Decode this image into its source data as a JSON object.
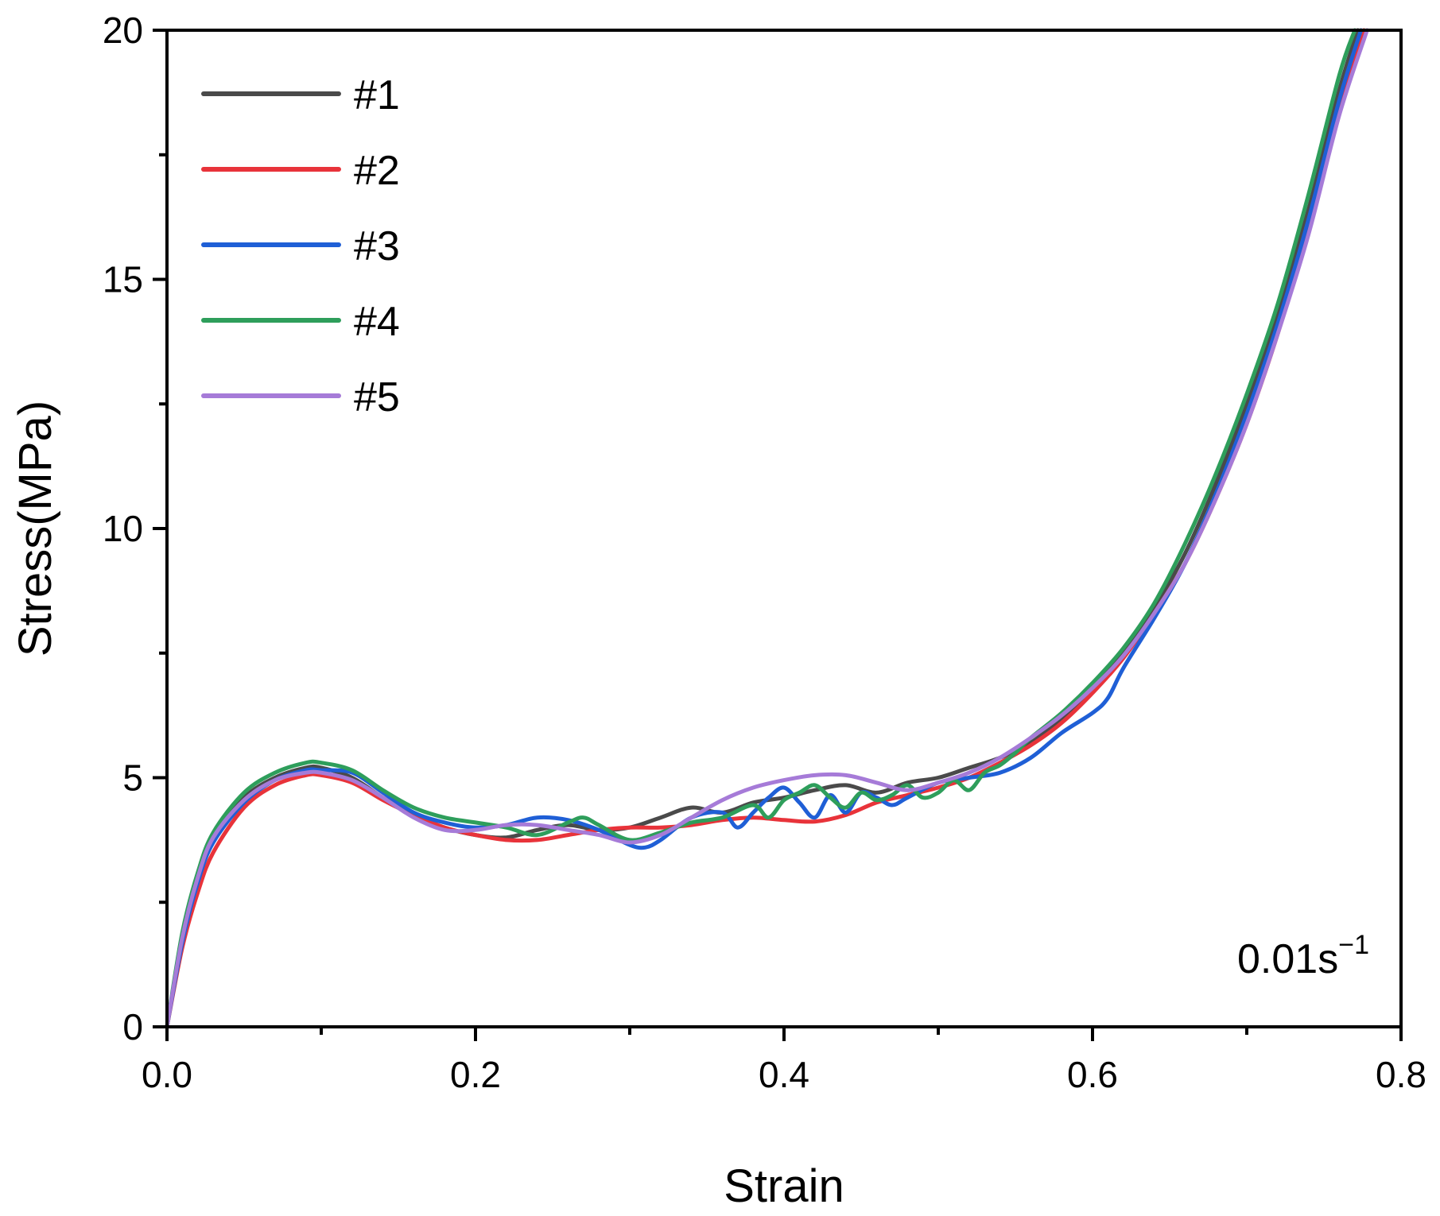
{
  "chart_data": {
    "type": "line",
    "title": "",
    "xlabel": "Strain",
    "ylabel": "Stress(MPa)",
    "xlim": [
      0.0,
      0.8
    ],
    "ylim": [
      0,
      20
    ],
    "xticks": [
      {
        "value": 0.0,
        "label": "0.0"
      },
      {
        "value": 0.2,
        "label": "0.2"
      },
      {
        "value": 0.4,
        "label": "0.4"
      },
      {
        "value": 0.6,
        "label": "0.6"
      },
      {
        "value": 0.8,
        "label": "0.8"
      }
    ],
    "yticks": [
      {
        "value": 0,
        "label": "0"
      },
      {
        "value": 5,
        "label": "5"
      },
      {
        "value": 10,
        "label": "10"
      },
      {
        "value": 15,
        "label": "15"
      },
      {
        "value": 20,
        "label": "20"
      }
    ],
    "grid": false,
    "legend_position": "top-left",
    "annotation": {
      "text": "0.01s",
      "superscript": "−1"
    },
    "series": [
      {
        "name": "#1",
        "color": "#4a4a4a",
        "x": [
          0.0,
          0.01,
          0.02,
          0.03,
          0.05,
          0.07,
          0.09,
          0.1,
          0.12,
          0.14,
          0.16,
          0.18,
          0.2,
          0.22,
          0.24,
          0.26,
          0.28,
          0.3,
          0.32,
          0.34,
          0.36,
          0.38,
          0.4,
          0.42,
          0.44,
          0.46,
          0.48,
          0.5,
          0.52,
          0.54,
          0.56,
          0.58,
          0.6,
          0.62,
          0.64,
          0.66,
          0.68,
          0.7,
          0.72,
          0.74,
          0.76,
          0.772
        ],
        "y": [
          0.0,
          1.8,
          3.0,
          3.8,
          4.6,
          5.0,
          5.2,
          5.2,
          5.0,
          4.6,
          4.25,
          4.0,
          3.85,
          3.8,
          3.95,
          4.05,
          3.95,
          4.0,
          4.2,
          4.4,
          4.3,
          4.5,
          4.6,
          4.75,
          4.85,
          4.7,
          4.9,
          5.0,
          5.2,
          5.4,
          5.7,
          6.2,
          6.8,
          7.5,
          8.4,
          9.5,
          10.9,
          12.5,
          14.3,
          16.4,
          18.8,
          20.0
        ]
      },
      {
        "name": "#2",
        "color": "#e8333a",
        "x": [
          0.0,
          0.01,
          0.02,
          0.03,
          0.05,
          0.07,
          0.09,
          0.1,
          0.12,
          0.14,
          0.16,
          0.18,
          0.2,
          0.22,
          0.24,
          0.26,
          0.28,
          0.3,
          0.32,
          0.34,
          0.36,
          0.38,
          0.4,
          0.42,
          0.44,
          0.46,
          0.48,
          0.5,
          0.52,
          0.54,
          0.56,
          0.58,
          0.6,
          0.62,
          0.64,
          0.66,
          0.68,
          0.7,
          0.72,
          0.74,
          0.76,
          0.776
        ],
        "y": [
          0.0,
          1.6,
          2.7,
          3.5,
          4.4,
          4.85,
          5.05,
          5.05,
          4.9,
          4.55,
          4.25,
          4.0,
          3.85,
          3.75,
          3.75,
          3.85,
          3.95,
          4.0,
          4.0,
          4.05,
          4.15,
          4.2,
          4.15,
          4.12,
          4.25,
          4.5,
          4.65,
          4.8,
          5.0,
          5.3,
          5.65,
          6.1,
          6.7,
          7.4,
          8.3,
          9.3,
          10.6,
          12.1,
          13.9,
          16.0,
          18.4,
          20.0
        ]
      },
      {
        "name": "#3",
        "color": "#1f5fd6",
        "x": [
          0.0,
          0.01,
          0.02,
          0.03,
          0.05,
          0.07,
          0.09,
          0.1,
          0.12,
          0.14,
          0.16,
          0.18,
          0.2,
          0.22,
          0.24,
          0.26,
          0.28,
          0.3,
          0.31,
          0.32,
          0.34,
          0.36,
          0.37,
          0.38,
          0.39,
          0.4,
          0.41,
          0.42,
          0.43,
          0.44,
          0.45,
          0.46,
          0.47,
          0.48,
          0.5,
          0.52,
          0.54,
          0.56,
          0.58,
          0.6,
          0.61,
          0.62,
          0.64,
          0.66,
          0.68,
          0.7,
          0.72,
          0.74,
          0.76,
          0.774
        ],
        "y": [
          0.0,
          1.7,
          2.9,
          3.7,
          4.5,
          4.95,
          5.15,
          5.15,
          5.1,
          4.7,
          4.3,
          4.1,
          4.0,
          4.05,
          4.2,
          4.15,
          3.95,
          3.65,
          3.6,
          3.75,
          4.2,
          4.3,
          4.0,
          4.3,
          4.6,
          4.8,
          4.5,
          4.2,
          4.65,
          4.3,
          4.7,
          4.6,
          4.45,
          4.6,
          4.9,
          5.0,
          5.1,
          5.4,
          5.9,
          6.3,
          6.6,
          7.2,
          8.2,
          9.3,
          10.7,
          12.3,
          14.1,
          16.2,
          18.6,
          20.0
        ]
      },
      {
        "name": "#4",
        "color": "#2e9e5b",
        "x": [
          0.0,
          0.01,
          0.02,
          0.03,
          0.05,
          0.07,
          0.09,
          0.1,
          0.12,
          0.14,
          0.16,
          0.18,
          0.2,
          0.22,
          0.24,
          0.26,
          0.27,
          0.28,
          0.3,
          0.32,
          0.34,
          0.36,
          0.38,
          0.39,
          0.4,
          0.41,
          0.42,
          0.43,
          0.44,
          0.45,
          0.46,
          0.47,
          0.48,
          0.49,
          0.5,
          0.51,
          0.52,
          0.53,
          0.54,
          0.55,
          0.56,
          0.58,
          0.6,
          0.62,
          0.64,
          0.66,
          0.68,
          0.7,
          0.72,
          0.74,
          0.76,
          0.77
        ],
        "y": [
          0.0,
          1.9,
          3.1,
          3.9,
          4.7,
          5.1,
          5.3,
          5.3,
          5.15,
          4.75,
          4.4,
          4.2,
          4.1,
          4.0,
          3.85,
          4.1,
          4.2,
          4.05,
          3.75,
          3.9,
          4.1,
          4.2,
          4.45,
          4.2,
          4.55,
          4.7,
          4.85,
          4.6,
          4.4,
          4.7,
          4.55,
          4.65,
          4.85,
          4.6,
          4.7,
          4.95,
          4.75,
          5.1,
          5.25,
          5.5,
          5.8,
          6.3,
          6.9,
          7.6,
          8.5,
          9.7,
          11.1,
          12.7,
          14.5,
          16.7,
          19.1,
          20.0
        ]
      },
      {
        "name": "#5",
        "color": "#a67bd8",
        "x": [
          0.0,
          0.01,
          0.02,
          0.03,
          0.05,
          0.07,
          0.09,
          0.1,
          0.12,
          0.14,
          0.16,
          0.18,
          0.2,
          0.22,
          0.24,
          0.26,
          0.28,
          0.3,
          0.32,
          0.34,
          0.36,
          0.38,
          0.4,
          0.42,
          0.44,
          0.46,
          0.48,
          0.5,
          0.52,
          0.54,
          0.56,
          0.58,
          0.6,
          0.62,
          0.64,
          0.66,
          0.68,
          0.7,
          0.72,
          0.74,
          0.76,
          0.778
        ],
        "y": [
          0.0,
          1.8,
          3.0,
          3.8,
          4.55,
          4.95,
          5.1,
          5.1,
          4.95,
          4.6,
          4.2,
          3.95,
          3.95,
          4.05,
          4.05,
          3.95,
          3.85,
          3.7,
          3.85,
          4.2,
          4.55,
          4.8,
          4.95,
          5.05,
          5.05,
          4.9,
          4.75,
          4.9,
          5.1,
          5.4,
          5.8,
          6.25,
          6.8,
          7.45,
          8.3,
          9.3,
          10.6,
          12.1,
          13.9,
          15.9,
          18.3,
          20.0
        ]
      }
    ]
  }
}
